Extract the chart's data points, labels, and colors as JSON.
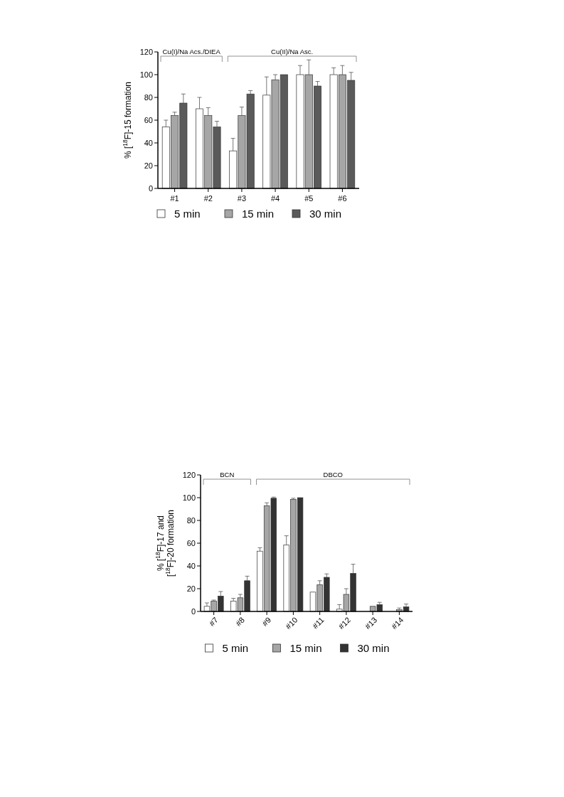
{
  "chart_data": [
    {
      "type": "bar",
      "ylabel": "% [$^{18}$F]-15 formation",
      "categories": [
        "#1",
        "#2",
        "#3",
        "#4",
        "#5",
        "#6"
      ],
      "ylim": [
        0,
        120
      ],
      "yticks": [
        0,
        20,
        40,
        60,
        80,
        100,
        120
      ],
      "legend": "bottom",
      "grid": false,
      "annotations": [
        "Cu(I)/Na Acs./DIEA",
        "Cu(II)/Na Asc."
      ],
      "series": [
        {
          "name": "5 min",
          "color": "#ffffff",
          "values": [
            54,
            70,
            33,
            82,
            100,
            100
          ],
          "errors": [
            [
              54,
              60
            ],
            [
              70,
              80
            ],
            [
              33,
              44
            ],
            [
              82,
              98
            ],
            [
              100,
              108
            ],
            [
              100,
              106
            ]
          ]
        },
        {
          "name": "15 min",
          "color": "#a6a6a6",
          "values": [
            64,
            64,
            64,
            95.5,
            100,
            100
          ],
          "errors": [
            [
              64,
              67
            ],
            [
              64,
              71
            ],
            [
              64,
              71.5
            ],
            [
              95.5,
              100
            ],
            [
              100,
              113
            ],
            [
              100,
              108
            ]
          ]
        },
        {
          "name": "30 min",
          "color": "#5a5a5a",
          "values": [
            75,
            54,
            83,
            100,
            90,
            95
          ],
          "errors": [
            [
              75,
              83
            ],
            [
              54,
              59
            ],
            [
              83,
              86
            ],
            null,
            [
              90,
              94
            ],
            [
              95,
              102
            ]
          ]
        }
      ]
    },
    {
      "type": "bar",
      "ylabel": "% [$^{18}$F]-17 and [$^{18}$F]-20 formation",
      "categories": [
        "#7",
        "#8",
        "#9",
        "#10",
        "#11",
        "#12",
        "#13",
        "#14"
      ],
      "ylim": [
        0,
        120
      ],
      "yticks": [
        0,
        20,
        40,
        60,
        80,
        100,
        120
      ],
      "legend": "bottom",
      "grid": false,
      "annotations": [
        "BCN",
        "DBCO"
      ],
      "series": [
        {
          "name": "5 min",
          "color": "#ffffff",
          "values": [
            4.5,
            9,
            53,
            58.5,
            17,
            2,
            0,
            0
          ],
          "errors": [
            [
              4.5,
              7.5
            ],
            [
              9,
              11.5
            ],
            [
              53,
              56
            ],
            [
              58.5,
              66.5
            ],
            null,
            [
              2,
              6
            ],
            null,
            null
          ]
        },
        {
          "name": "15 min",
          "color": "#a6a6a6",
          "values": [
            9,
            12,
            93,
            98.5,
            23.5,
            15,
            4.5,
            1.5
          ],
          "errors": [
            [
              9,
              10
            ],
            [
              12,
              15
            ],
            [
              93,
              95.5
            ],
            [
              98.5,
              99.5
            ],
            [
              23.5,
              27
            ],
            [
              15,
              20
            ],
            null,
            [
              1.5,
              3
            ]
          ]
        },
        {
          "name": "30 min",
          "color": "#333333",
          "values": [
            13.5,
            27,
            99.5,
            100,
            30,
            33.5,
            6,
            4
          ],
          "errors": [
            [
              13.5,
              17.5
            ],
            [
              27,
              31
            ],
            [
              99.5,
              100.5
            ],
            null,
            [
              30,
              33
            ],
            [
              33.5,
              41.5
            ],
            [
              6,
              8
            ],
            [
              4,
              6.5
            ]
          ]
        }
      ]
    }
  ]
}
